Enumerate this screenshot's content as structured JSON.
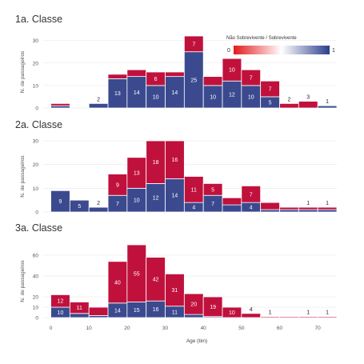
{
  "chart_data": {
    "type": "bar",
    "xlabel": "Age (bin)",
    "x_ticks": [
      0,
      10,
      20,
      30,
      40,
      50,
      60,
      70
    ],
    "bin_width": 5,
    "legend": {
      "title": "Não Sobrevivente / Sobrevivente",
      "min_label": "0",
      "max_label": "1",
      "color_low": "#e31a1c",
      "color_mid": "#ffffff",
      "color_high": "#2c3e8c"
    },
    "colors": {
      "survived": "#3b4a8f",
      "not_survived": "#c0113d"
    },
    "panels": [
      {
        "title": "1a. Classe",
        "ylabel": "N. de passageiros",
        "ylim": [
          0,
          32
        ],
        "y_ticks": [
          0,
          10,
          20,
          30
        ],
        "bins": [
          0,
          5,
          10,
          15,
          20,
          25,
          30,
          35,
          40,
          45,
          50,
          55,
          60,
          65,
          70
        ],
        "survived": [
          1,
          0,
          2,
          13,
          14,
          10,
          14,
          25,
          10,
          12,
          10,
          5,
          0,
          0,
          1
        ],
        "not_survived": [
          1,
          0,
          0,
          2,
          3,
          6,
          2,
          7,
          4,
          10,
          7,
          7,
          2,
          3,
          0
        ],
        "labels_survived": [
          "",
          "",
          "2",
          "13",
          "14",
          "10",
          "14",
          "25",
          "10",
          "12",
          "10",
          "5",
          "",
          "",
          "1"
        ],
        "labels_not_survived": [
          "",
          "",
          "",
          "",
          "",
          "6",
          "",
          "7",
          "",
          "10",
          "7",
          "7",
          "2",
          "3",
          ""
        ]
      },
      {
        "title": "2a. Classe",
        "ylabel": "N. de passageiros",
        "ylim": [
          0,
          30
        ],
        "y_ticks": [
          0,
          10,
          20,
          30
        ],
        "bins": [
          0,
          5,
          10,
          15,
          20,
          25,
          30,
          35,
          40,
          45,
          50,
          55,
          60,
          65,
          70
        ],
        "survived": [
          9,
          5,
          2,
          7,
          10,
          12,
          14,
          4,
          7,
          3,
          4,
          1,
          1,
          1,
          1
        ],
        "not_survived": [
          0,
          0,
          0,
          9,
          13,
          18,
          16,
          11,
          5,
          3,
          7,
          3,
          1,
          1,
          1
        ],
        "labels_survived": [
          "9",
          "5",
          "2",
          "7",
          "10",
          "12",
          "14",
          "4",
          "7",
          "",
          "4",
          "",
          "",
          "",
          ""
        ],
        "labels_not_survived": [
          "",
          "",
          "",
          "9",
          "13",
          "18",
          "16",
          "11",
          "5",
          "",
          "7",
          "",
          "",
          "1",
          "1"
        ]
      },
      {
        "title": "3a. Classe",
        "ylabel": "N. de passageiros",
        "ylim": [
          0,
          70
        ],
        "y_ticks": [
          0,
          10,
          20,
          40,
          60
        ],
        "bins": [
          0,
          5,
          10,
          15,
          20,
          25,
          30,
          35,
          40,
          45,
          50,
          55,
          60,
          65,
          70
        ],
        "survived": [
          10,
          4,
          2,
          14,
          15,
          16,
          11,
          3,
          1,
          0,
          0,
          0,
          0,
          0,
          0
        ],
        "not_survived": [
          12,
          11,
          8,
          40,
          55,
          42,
          31,
          20,
          19,
          10,
          4,
          1,
          1,
          1,
          1
        ],
        "labels_survived": [
          "10",
          "",
          "",
          "14",
          "15",
          "16",
          "11",
          "",
          "",
          "",
          "",
          "",
          "",
          "",
          ""
        ],
        "labels_not_survived": [
          "12",
          "11",
          "",
          "40",
          "55",
          "42",
          "31",
          "20",
          "19",
          "10",
          "4",
          "1",
          "",
          "1",
          "1"
        ]
      }
    ]
  }
}
